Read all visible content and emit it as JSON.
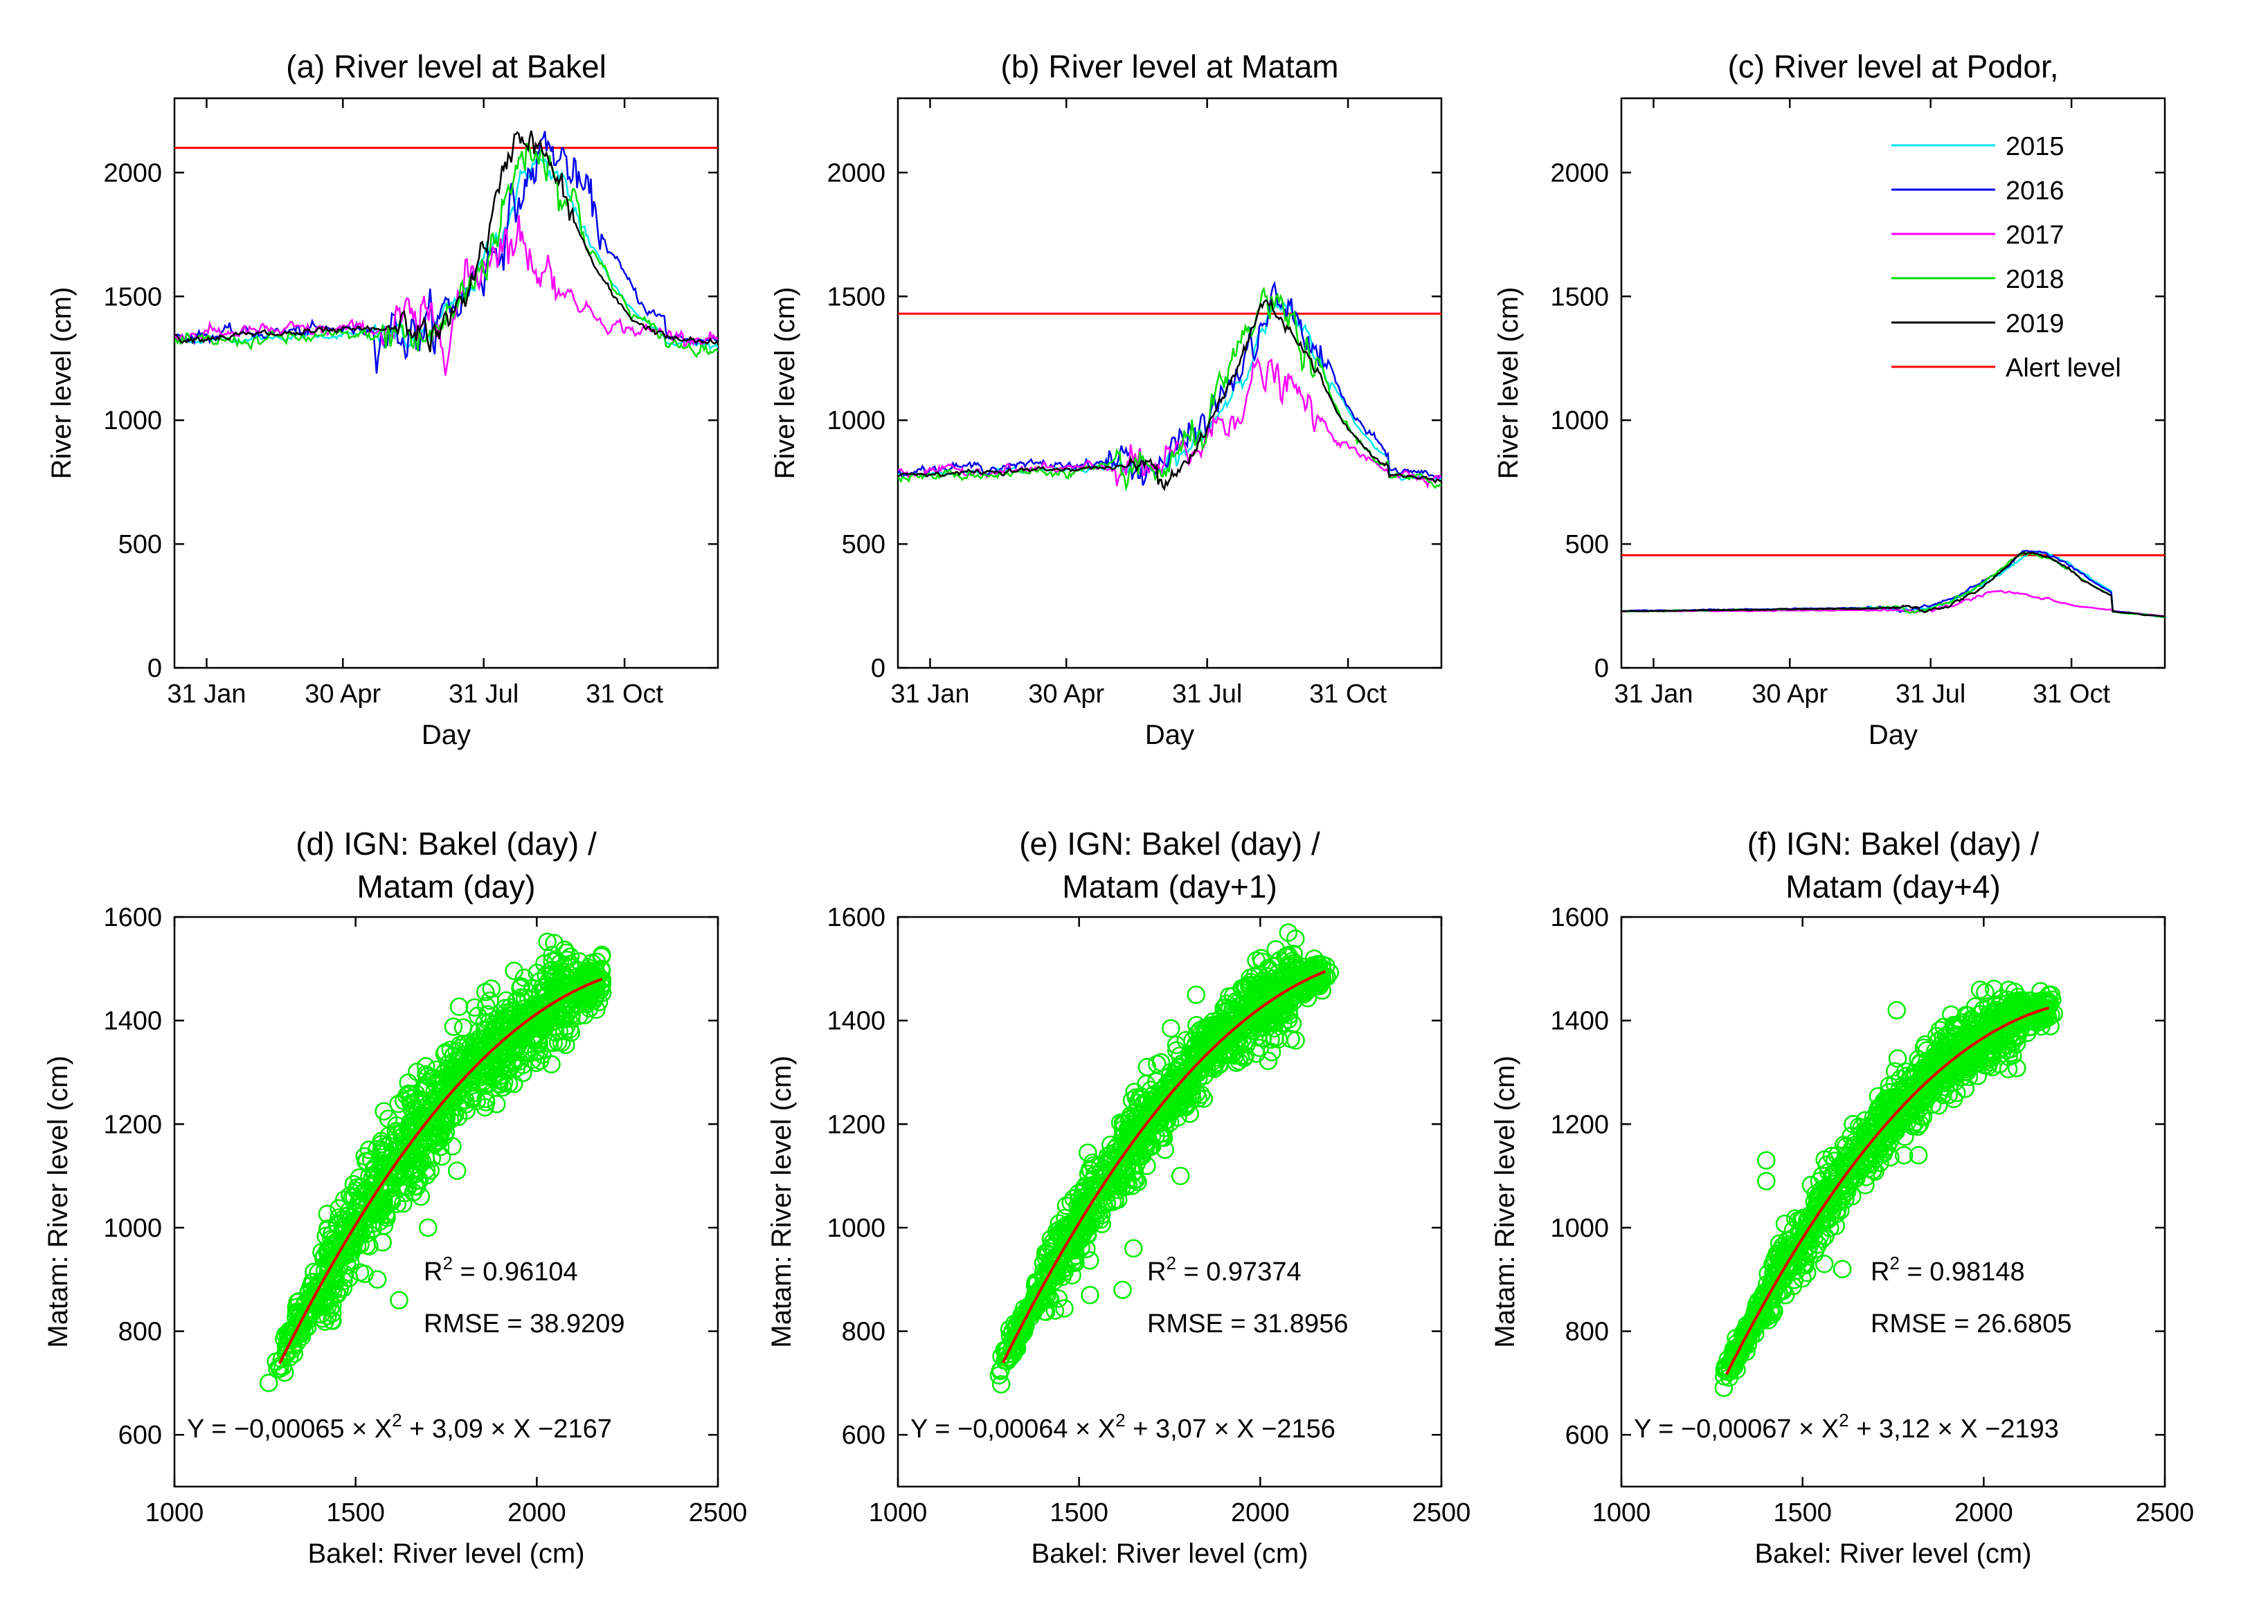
{
  "colors": {
    "alert": "#ff0000",
    "fit": "#dd0000",
    "scatter": "#00ee00",
    "years": {
      "2015": "#00e5ee",
      "2016": "#0000ee",
      "2017": "#ff00ff",
      "2018": "#00dd00",
      "2019": "#000000"
    }
  },
  "chart_data": [
    {
      "type": "line",
      "id": "a",
      "title": "(a) River level at Bakel",
      "xlabel": "Day",
      "ylabel": "River level (cm)",
      "xlim": [
        10,
        365
      ],
      "ylim": [
        0,
        2300
      ],
      "x_ticks": [
        {
          "value": 31,
          "label": "31 Jan"
        },
        {
          "value": 120,
          "label": "30 Apr"
        },
        {
          "value": 212,
          "label": "31 Jul"
        },
        {
          "value": 304,
          "label": "31 Oct"
        }
      ],
      "y_ticks": [
        0,
        500,
        1000,
        1500,
        2000
      ],
      "alert_level": 2100,
      "series": [
        {
          "name": "2015",
          "peak_day": 243,
          "peak": 2050,
          "base": 1320,
          "rise_start": 160,
          "noise": 20
        },
        {
          "name": "2016",
          "peak_day": 250,
          "peak": 2100,
          "base": 1340,
          "rise_start": 160,
          "noise": 40
        },
        {
          "name": "2017",
          "peak_day": 220,
          "peak": 1750,
          "base": 1350,
          "rise_start": 165,
          "noise": 45
        },
        {
          "name": "2018",
          "peak_day": 240,
          "peak": 2120,
          "base": 1310,
          "rise_start": 165,
          "noise": 40
        },
        {
          "name": "2019",
          "peak_day": 233,
          "peak": 2170,
          "base": 1330,
          "rise_start": 175,
          "noise": 25
        }
      ]
    },
    {
      "type": "line",
      "id": "b",
      "title": "(b) River level at Matam",
      "xlabel": "Day",
      "ylabel": "River level (cm)",
      "xlim": [
        10,
        365
      ],
      "ylim": [
        0,
        2300
      ],
      "x_ticks": [
        {
          "value": 31,
          "label": "31 Jan"
        },
        {
          "value": 120,
          "label": "30 Apr"
        },
        {
          "value": 212,
          "label": "31 Jul"
        },
        {
          "value": 304,
          "label": "31 Oct"
        }
      ],
      "y_ticks": [
        0,
        500,
        1000,
        1500,
        2000
      ],
      "alert_level": 1430,
      "series": [
        {
          "name": "2015",
          "peak_day": 255,
          "peak": 1450,
          "base": 780,
          "rise_start": 170,
          "noise": 15
        },
        {
          "name": "2016",
          "peak_day": 255,
          "peak": 1460,
          "base": 800,
          "rise_start": 165,
          "noise": 30
        },
        {
          "name": "2017",
          "peak_day": 245,
          "peak": 1180,
          "base": 790,
          "rise_start": 170,
          "noise": 30
        },
        {
          "name": "2018",
          "peak_day": 248,
          "peak": 1470,
          "base": 770,
          "rise_start": 170,
          "noise": 30
        },
        {
          "name": "2019",
          "peak_day": 247,
          "peak": 1470,
          "base": 780,
          "rise_start": 180,
          "noise": 15
        }
      ]
    },
    {
      "type": "line",
      "id": "c",
      "title": "(c) River level at Podor,",
      "xlabel": "Day",
      "ylabel": "River level (cm)",
      "xlim": [
        10,
        365
      ],
      "ylim": [
        0,
        2300
      ],
      "x_ticks": [
        {
          "value": 31,
          "label": "31 Jan"
        },
        {
          "value": 120,
          "label": "30 Apr"
        },
        {
          "value": 212,
          "label": "31 Jul"
        },
        {
          "value": 304,
          "label": "31 Oct"
        }
      ],
      "y_ticks": [
        0,
        500,
        1000,
        1500,
        2000
      ],
      "alert_level": 455,
      "legend": [
        "2015",
        "2016",
        "2017",
        "2018",
        "2019",
        "Alert level"
      ],
      "series": [
        {
          "name": "2015",
          "peak_day": 278,
          "peak": 470,
          "base": 228,
          "rise_start": 190,
          "noise": 3
        },
        {
          "name": "2016",
          "peak_day": 275,
          "peak": 475,
          "base": 230,
          "rise_start": 190,
          "noise": 3
        },
        {
          "name": "2017",
          "peak_day": 250,
          "peak": 310,
          "base": 228,
          "rise_start": 200,
          "noise": 3
        },
        {
          "name": "2018",
          "peak_day": 272,
          "peak": 470,
          "base": 228,
          "rise_start": 195,
          "noise": 3
        },
        {
          "name": "2019",
          "peak_day": 272,
          "peak": 470,
          "base": 228,
          "rise_start": 205,
          "noise": 3
        }
      ]
    },
    {
      "type": "scatter",
      "id": "d",
      "title_lines": [
        "(d) IGN: Bakel (day) /",
        "Matam (day)"
      ],
      "xlabel": "Bakel: River level (cm)",
      "ylabel": "Matam: River level (cm)",
      "xlim": [
        1000,
        2500
      ],
      "ylim": [
        500,
        1600
      ],
      "x_ticks": [
        1000,
        1500,
        2000,
        2500
      ],
      "y_ticks": [
        600,
        800,
        1000,
        1200,
        1400,
        1600
      ],
      "fit": {
        "a": -0.00065,
        "b": 3.09,
        "c": -2167,
        "x_range": [
          1290,
          2180
        ]
      },
      "r2_label": "R",
      "r2_value": " = 0.96104",
      "rmse": "RMSE = 38.9209",
      "eq_prefix": "Y = −0,00065 × X",
      "eq_suffix": " + 3,09 × X −2167",
      "points_n": 1100,
      "spread": 45,
      "outliers": [
        [
          1620,
          860
        ],
        [
          1700,
          1000
        ],
        [
          1780,
          1110
        ],
        [
          1680,
          1060
        ],
        [
          1560,
          900
        ]
      ]
    },
    {
      "type": "scatter",
      "id": "e",
      "title_lines": [
        "(e) IGN: Bakel (day) /",
        "Matam (day+1)"
      ],
      "xlabel": "Bakel: River level (cm)",
      "ylabel": "Matam: River level (cm)",
      "xlim": [
        1000,
        2500
      ],
      "ylim": [
        500,
        1600
      ],
      "x_ticks": [
        1000,
        1500,
        2000,
        2500
      ],
      "y_ticks": [
        600,
        800,
        1000,
        1200,
        1400,
        1600
      ],
      "fit": {
        "a": -0.00064,
        "b": 3.07,
        "c": -2156,
        "x_range": [
          1290,
          2180
        ]
      },
      "r2_label": "R",
      "r2_value": " = 0.97374",
      "rmse": "RMSE = 31.8956",
      "eq_prefix": "Y = −0,00064 × X",
      "eq_suffix": " + 3,07 × X −2156",
      "points_n": 1100,
      "spread": 38,
      "outliers": [
        [
          1620,
          880
        ],
        [
          1530,
          870
        ],
        [
          1650,
          960
        ],
        [
          1780,
          1100
        ]
      ]
    },
    {
      "type": "scatter",
      "id": "f",
      "title_lines": [
        "(f) IGN: Bakel (day) /",
        "Matam (day+4)"
      ],
      "xlabel": "Bakel: River level (cm)",
      "ylabel": "Matam: River level (cm)",
      "xlim": [
        1000,
        2500
      ],
      "ylim": [
        500,
        1600
      ],
      "x_ticks": [
        1000,
        1500,
        2000,
        2500
      ],
      "y_ticks": [
        600,
        800,
        1000,
        1200,
        1400,
        1600
      ],
      "fit": {
        "a": -0.00067,
        "b": 3.12,
        "c": -2193,
        "x_range": [
          1290,
          2180
        ]
      },
      "r2_label": "R",
      "r2_value": " = 0.98148",
      "rmse": "RMSE = 26.6805",
      "eq_prefix": "Y = −0,00067 × X",
      "eq_suffix": " + 3,12 × X −2193",
      "points_n": 1100,
      "spread": 32,
      "outliers": [
        [
          1760,
          1420
        ],
        [
          1400,
          1130
        ],
        [
          1400,
          1090
        ],
        [
          1610,
          920
        ],
        [
          1560,
          930
        ],
        [
          1780,
          1140
        ],
        [
          1820,
          1140
        ]
      ]
    }
  ]
}
